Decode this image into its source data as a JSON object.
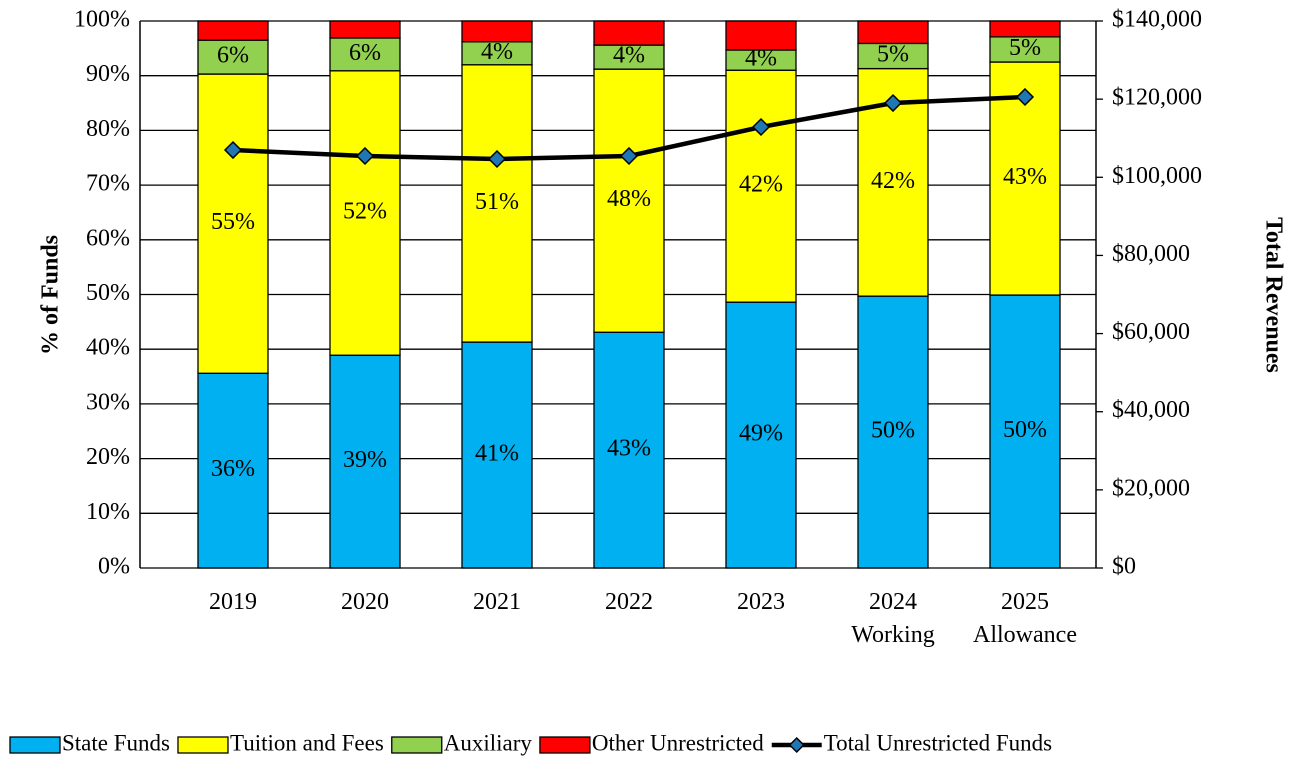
{
  "chart_data": {
    "type": "bar",
    "stacked": true,
    "y_label": "% of Funds",
    "y2_label": "Total Revenues",
    "categories": [
      "2019",
      "2020",
      "2021",
      "2022",
      "2023",
      "2024\nWorking",
      "2025\nAllowance"
    ],
    "series": [
      {
        "name": "State Funds",
        "color": "#00B0F0",
        "values": [
          35.6,
          38.9,
          41.3,
          43.1,
          48.6,
          49.7,
          49.9
        ],
        "value_labels": [
          "36%",
          "39%",
          "41%",
          "43%",
          "49%",
          "50%",
          "50%"
        ]
      },
      {
        "name": "Tuition and Fees",
        "color": "#FFFF00",
        "values": [
          54.7,
          52.0,
          50.7,
          48.1,
          42.4,
          41.6,
          42.6
        ],
        "value_labels": [
          "55%",
          "52%",
          "51%",
          "48%",
          "42%",
          "42%",
          "43%"
        ]
      },
      {
        "name": "Auxiliary",
        "color": "#92D050",
        "values": [
          6.2,
          6.0,
          4.2,
          4.4,
          3.7,
          4.6,
          4.6
        ],
        "value_labels": [
          "6%",
          "6%",
          "4%",
          "4%",
          "4%",
          "5%",
          "5%"
        ]
      },
      {
        "name": "Other Unrestricted",
        "color": "#FF0000",
        "values": [
          3.5,
          3.1,
          3.8,
          4.4,
          5.3,
          4.1,
          2.9
        ]
      },
      {
        "name": "Total Unrestricted Funds",
        "type": "line",
        "axis": "y2",
        "color": "#000000",
        "values": [
          106980,
          105450,
          104680,
          105450,
          112870,
          119010,
          120550
        ]
      }
    ],
    "ylim": [
      0,
      100
    ],
    "yticks": [
      {
        "value": 0,
        "label": "0%"
      },
      {
        "value": 10,
        "label": "10%"
      },
      {
        "value": 20,
        "label": "20%"
      },
      {
        "value": 30,
        "label": "30%"
      },
      {
        "value": 40,
        "label": "40%"
      },
      {
        "value": 50,
        "label": "50%"
      },
      {
        "value": 60,
        "label": "60%"
      },
      {
        "value": 70,
        "label": "70%"
      },
      {
        "value": 80,
        "label": "80%"
      },
      {
        "value": 90,
        "label": "90%"
      },
      {
        "value": 100,
        "label": "100%"
      }
    ],
    "y2lim": [
      0,
      140000
    ],
    "y2ticks": [
      {
        "value": 0,
        "label": "$0"
      },
      {
        "value": 20000,
        "label": "$20,000"
      },
      {
        "value": 40000,
        "label": "$40,000"
      },
      {
        "value": 60000,
        "label": "$60,000"
      },
      {
        "value": 80000,
        "label": "$80,000"
      },
      {
        "value": 100000,
        "label": "$100,000"
      },
      {
        "value": 120000,
        "label": "$120,000"
      },
      {
        "value": 140000,
        "label": "$140,000"
      }
    ],
    "grid": true,
    "legend": "bottom"
  }
}
